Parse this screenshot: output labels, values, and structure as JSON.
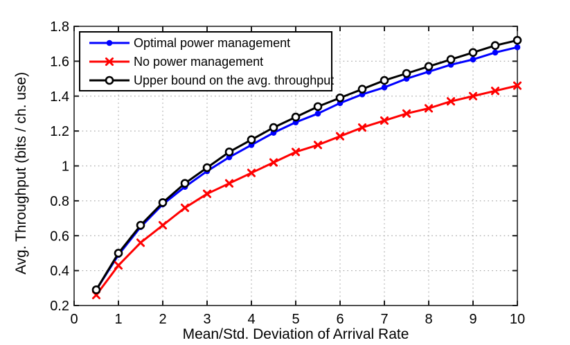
{
  "chart_data": {
    "type": "line",
    "title": "",
    "xlabel": "Mean/Std. Deviation of Arrival Rate",
    "ylabel": "Avg. Throughput (bits / ch. use)",
    "xlim": [
      0,
      10
    ],
    "ylim": [
      0.2,
      1.8
    ],
    "grid": "dotted",
    "legend_position": "top-left",
    "x_ticks": {
      "values": [
        0,
        1,
        2,
        3,
        4,
        5,
        6,
        7,
        8,
        9,
        10
      ],
      "labels": [
        "0",
        "1",
        "2",
        "3",
        "4",
        "5",
        "6",
        "7",
        "8",
        "9",
        "10"
      ]
    },
    "y_ticks": {
      "values": [
        0.2,
        0.4,
        0.6,
        0.8,
        1.0,
        1.2,
        1.4,
        1.6,
        1.8
      ],
      "labels": [
        "0.2",
        "0.4",
        "0.6",
        "0.8",
        "1",
        "1.2",
        "1.4",
        "1.6",
        "1.8"
      ]
    },
    "x": [
      0.5,
      1,
      1.5,
      2,
      2.5,
      3,
      3.5,
      4,
      4.5,
      5,
      5.5,
      6,
      6.5,
      7,
      7.5,
      8,
      8.5,
      9,
      9.5,
      10
    ],
    "series": [
      {
        "name": "Optimal power management",
        "color": "#0000ff",
        "marker": "filled-circle",
        "values": [
          0.29,
          0.49,
          0.65,
          0.78,
          0.88,
          0.97,
          1.05,
          1.12,
          1.19,
          1.25,
          1.3,
          1.36,
          1.41,
          1.45,
          1.5,
          1.54,
          1.58,
          1.61,
          1.65,
          1.68
        ]
      },
      {
        "name": "No power management",
        "color": "#ff0000",
        "marker": "x",
        "values": [
          0.26,
          0.43,
          0.56,
          0.66,
          0.76,
          0.84,
          0.9,
          0.96,
          1.02,
          1.08,
          1.12,
          1.17,
          1.22,
          1.26,
          1.3,
          1.33,
          1.37,
          1.4,
          1.43,
          1.46
        ]
      },
      {
        "name": "Upper bound on the avg. throughput",
        "color": "#000000",
        "marker": "open-circle",
        "values": [
          0.29,
          0.5,
          0.66,
          0.79,
          0.9,
          0.99,
          1.08,
          1.15,
          1.22,
          1.28,
          1.34,
          1.39,
          1.44,
          1.49,
          1.53,
          1.57,
          1.61,
          1.65,
          1.69,
          1.72
        ]
      }
    ],
    "colors": {
      "background": "#ffffff",
      "grid": "#a8a8a8",
      "axis_box": "#4f4f4f",
      "tick": "#1a1a1a",
      "text": "#000000"
    }
  }
}
